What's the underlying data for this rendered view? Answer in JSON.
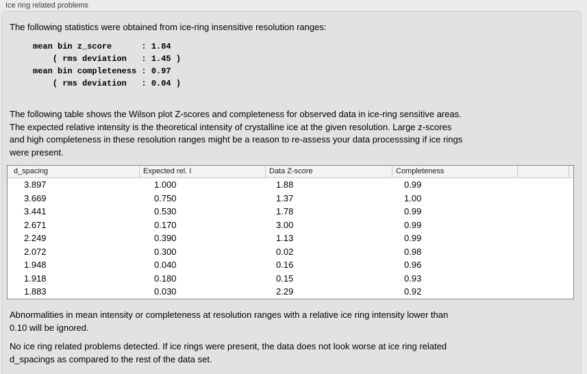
{
  "panel": {
    "title": "Ice ring related problems"
  },
  "sections": {
    "intro": "The following statistics were obtained from ice-ring insensitive resolution ranges:",
    "stats_lines": [
      "mean bin z_score      : 1.84",
      "    ( rms deviation   : 1.45 )",
      "mean bin completeness : 0.97",
      "    ( rms deviation   : 0.04 )"
    ],
    "stats_values": {
      "mean_bin_z_score": "1.84",
      "z_score_rms_deviation": "1.45",
      "mean_bin_completeness": "0.97",
      "completeness_rms_deviation": "0.04"
    },
    "table_intro_lines": [
      "The following table shows the Wilson plot Z-scores and completeness for observed data in ice-ring sensitive areas.",
      "The expected relative intensity is the theoretical intensity of crystalline ice at the given resolution. Large z-scores",
      "and high completeness in these resolution ranges might be a reason to re-assess your data processsing if ice rings",
      "were present."
    ],
    "footnote_lines": [
      "Abnormalities in mean intensity or completeness at resolution ranges with a relative ice ring intensity lower than",
      "0.10 will be ignored."
    ],
    "conclusion_lines": [
      "No ice ring related problems detected. If ice rings were present, the data does not look worse at ice ring related",
      "d_spacings as compared to the rest of the data set."
    ]
  },
  "ice_ring_table": {
    "columns": [
      "d_spacing",
      "Expected rel. I",
      "Data Z-score",
      "Completeness"
    ],
    "rows": [
      [
        "3.897",
        "1.000",
        "1.88",
        "0.99"
      ],
      [
        "3.669",
        "0.750",
        "1.37",
        "1.00"
      ],
      [
        "3.441",
        "0.530",
        "1.78",
        "0.99"
      ],
      [
        "2.671",
        "0.170",
        "3.00",
        "0.99"
      ],
      [
        "2.249",
        "0.390",
        "1.13",
        "0.99"
      ],
      [
        "2.072",
        "0.300",
        "0.02",
        "0.98"
      ],
      [
        "1.948",
        "0.040",
        "0.16",
        "0.96"
      ],
      [
        "1.918",
        "0.180",
        "0.15",
        "0.93"
      ],
      [
        "1.883",
        "0.030",
        "2.29",
        "0.92"
      ]
    ]
  },
  "colors": {
    "window_bg": "#ebebeb",
    "panel_bg": "#e2e2e2",
    "table_header_bg": "#f4f4f4",
    "table_border": "#868686"
  }
}
